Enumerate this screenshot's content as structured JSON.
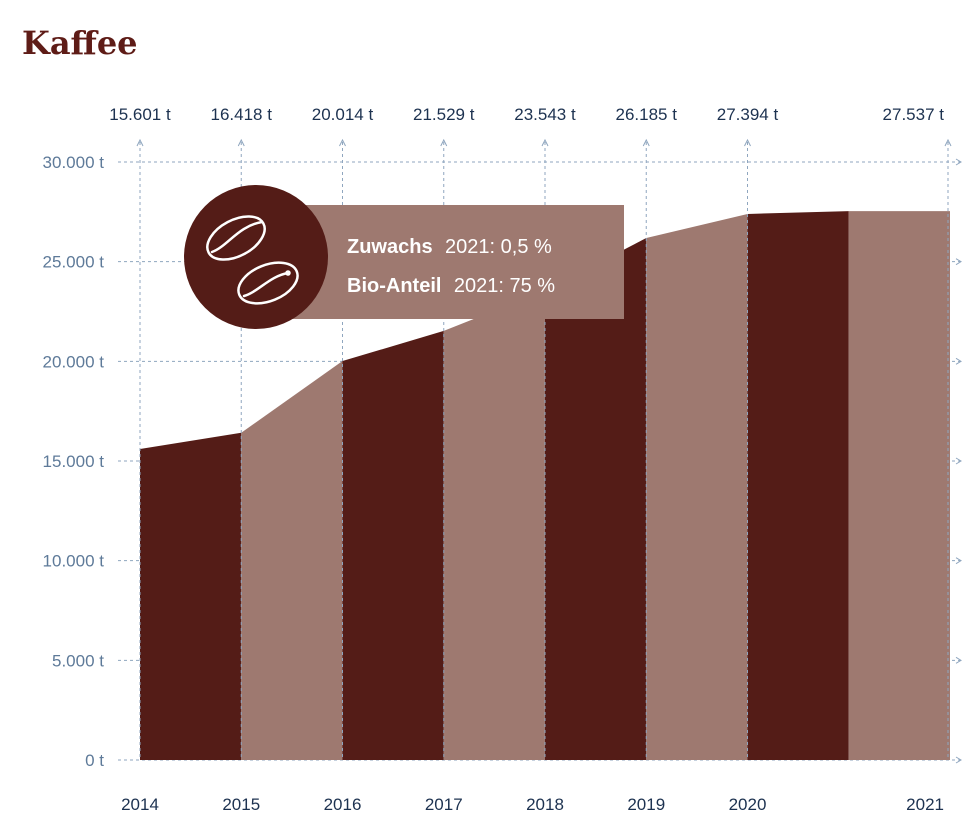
{
  "chart_data": {
    "type": "area",
    "title": "Kaffee",
    "x": [
      "2014",
      "2015",
      "2016",
      "2017",
      "2018",
      "2019",
      "2020",
      "2021"
    ],
    "values": [
      15601,
      16418,
      20014,
      21529,
      23543,
      26185,
      27394,
      27537
    ],
    "value_labels": [
      "15.601 t",
      "16.418 t",
      "20.014 t",
      "21.529 t",
      "23.543 t",
      "26.185 t",
      "27.394 t",
      "27.537 t"
    ],
    "y_ticks": [
      0,
      5000,
      10000,
      15000,
      20000,
      25000,
      30000
    ],
    "y_tick_labels": [
      "0 t",
      "5.000 t",
      "10.000 t",
      "15.000 t",
      "20.000 t",
      "25.000 t",
      "30.000 t"
    ],
    "ylim": [
      0,
      30000
    ],
    "grid": true,
    "colors": {
      "dark": "#541c17",
      "light": "#9e7970",
      "title": "#5e1c17",
      "grid": "#8fa6bf"
    },
    "annotation": {
      "icon": "coffee-beans-icon",
      "line1_bold": "Zuwachs",
      "line1_text": "2021: 0,5 %",
      "line2_bold": "Bio-Anteil",
      "line2_text": "2021: 75 %"
    }
  }
}
